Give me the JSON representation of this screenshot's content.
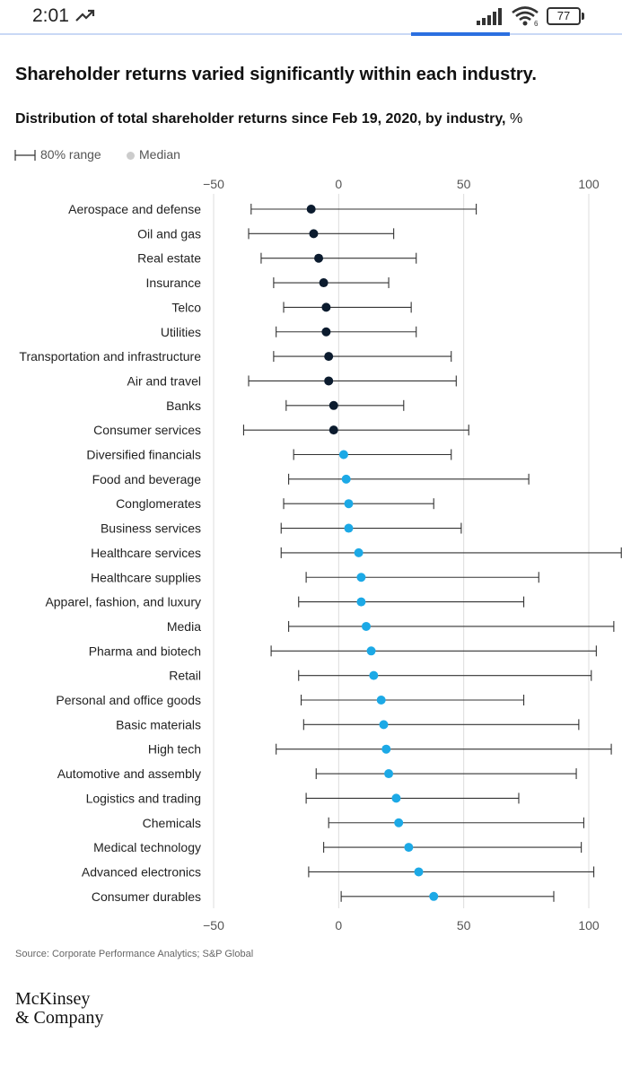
{
  "status_bar": {
    "time": "2:01",
    "battery": "77",
    "icons": [
      "trend-up-icon",
      "signal-icon",
      "wifi-icon",
      "battery-icon"
    ]
  },
  "headline": "Shareholder returns varied significantly within each industry.",
  "subtitle_main": "Distribution of total shareholder returns since Feb 19, 2020, by industry,",
  "subtitle_unit": "%",
  "legend": {
    "range_label": "80% range",
    "median_label": "Median"
  },
  "source": "Source: Corporate Performance Analytics; S&P Global",
  "logo": {
    "line1": "McKinsey",
    "line2": "& Company"
  },
  "colors": {
    "dark": "#0b1b2e",
    "blue": "#1ca9e6",
    "line": "#333333",
    "grid": "#dddddd"
  },
  "chart_data": {
    "type": "range-dot",
    "title": "Distribution of total shareholder returns since Feb 19, 2020, by industry, %",
    "xlim": [
      -50,
      100
    ],
    "xticks": [
      -50,
      0,
      50,
      100
    ],
    "xtick_labels": [
      "−50",
      "0",
      "50",
      "100"
    ],
    "grid": true,
    "series": [
      {
        "name": "Aerospace and defense",
        "low": -35,
        "median": -11,
        "high": 55,
        "color": "dark"
      },
      {
        "name": "Oil and gas",
        "low": -36,
        "median": -10,
        "high": 22,
        "color": "dark"
      },
      {
        "name": "Real estate",
        "low": -31,
        "median": -8,
        "high": 31,
        "color": "dark"
      },
      {
        "name": "Insurance",
        "low": -26,
        "median": -6,
        "high": 20,
        "color": "dark"
      },
      {
        "name": "Telco",
        "low": -22,
        "median": -5,
        "high": 29,
        "color": "dark"
      },
      {
        "name": "Utilities",
        "low": -25,
        "median": -5,
        "high": 31,
        "color": "dark"
      },
      {
        "name": "Transportation and infrastructure",
        "low": -26,
        "median": -4,
        "high": 45,
        "color": "dark"
      },
      {
        "name": "Air and travel",
        "low": -36,
        "median": -4,
        "high": 47,
        "color": "dark"
      },
      {
        "name": "Banks",
        "low": -21,
        "median": -2,
        "high": 26,
        "color": "dark"
      },
      {
        "name": "Consumer services",
        "low": -38,
        "median": -2,
        "high": 52,
        "color": "dark"
      },
      {
        "name": "Diversified financials",
        "low": -18,
        "median": 2,
        "high": 45,
        "color": "blue"
      },
      {
        "name": "Food and beverage",
        "low": -20,
        "median": 3,
        "high": 76,
        "color": "blue"
      },
      {
        "name": "Conglomerates",
        "low": -22,
        "median": 4,
        "high": 38,
        "color": "blue"
      },
      {
        "name": "Business services",
        "low": -23,
        "median": 4,
        "high": 49,
        "color": "blue"
      },
      {
        "name": "Healthcare services",
        "low": -23,
        "median": 8,
        "high": 113,
        "color": "blue"
      },
      {
        "name": "Healthcare supplies",
        "low": -13,
        "median": 9,
        "high": 80,
        "color": "blue"
      },
      {
        "name": "Apparel, fashion, and luxury",
        "low": -16,
        "median": 9,
        "high": 74,
        "color": "blue"
      },
      {
        "name": "Media",
        "low": -20,
        "median": 11,
        "high": 110,
        "color": "blue"
      },
      {
        "name": "Pharma and biotech",
        "low": -27,
        "median": 13,
        "high": 103,
        "color": "blue"
      },
      {
        "name": "Retail",
        "low": -16,
        "median": 14,
        "high": 101,
        "color": "blue"
      },
      {
        "name": "Personal and office goods",
        "low": -15,
        "median": 17,
        "high": 74,
        "color": "blue"
      },
      {
        "name": "Basic materials",
        "low": -14,
        "median": 18,
        "high": 96,
        "color": "blue"
      },
      {
        "name": "High tech",
        "low": -25,
        "median": 19,
        "high": 109,
        "color": "blue"
      },
      {
        "name": "Automotive and assembly",
        "low": -9,
        "median": 20,
        "high": 95,
        "color": "blue"
      },
      {
        "name": "Logistics and trading",
        "low": -13,
        "median": 23,
        "high": 72,
        "color": "blue"
      },
      {
        "name": "Chemicals",
        "low": -4,
        "median": 24,
        "high": 98,
        "color": "blue"
      },
      {
        "name": "Medical technology",
        "low": -6,
        "median": 28,
        "high": 97,
        "color": "blue"
      },
      {
        "name": "Advanced electronics",
        "low": -12,
        "median": 32,
        "high": 102,
        "color": "blue"
      },
      {
        "name": "Consumer durables",
        "low": 1,
        "median": 38,
        "high": 86,
        "color": "blue"
      }
    ]
  }
}
